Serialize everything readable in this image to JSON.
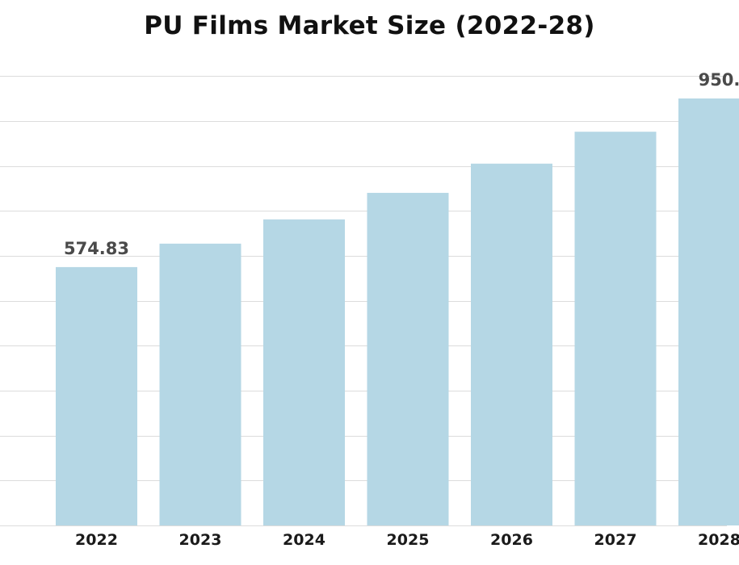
{
  "chart_data": {
    "type": "bar",
    "title": "PU Films Market Size (2022-28)",
    "xlabel": "",
    "ylabel": "",
    "categories": [
      "2022",
      "2023",
      "2024",
      "2025",
      "2026",
      "2027",
      "2028"
    ],
    "values": [
      574.83,
      627,
      681,
      740,
      805,
      876,
      950
    ],
    "data_labels": [
      "574.83",
      "",
      "",
      "",
      "",
      "",
      "950."
    ],
    "ylim": [
      0,
      1000
    ],
    "grid": true,
    "legend": "none",
    "colors": {
      "bar": "#b5d7e5",
      "grid": "#dcdcdc",
      "label": "#4a4a4a",
      "tick": "#1a1a1a"
    }
  }
}
